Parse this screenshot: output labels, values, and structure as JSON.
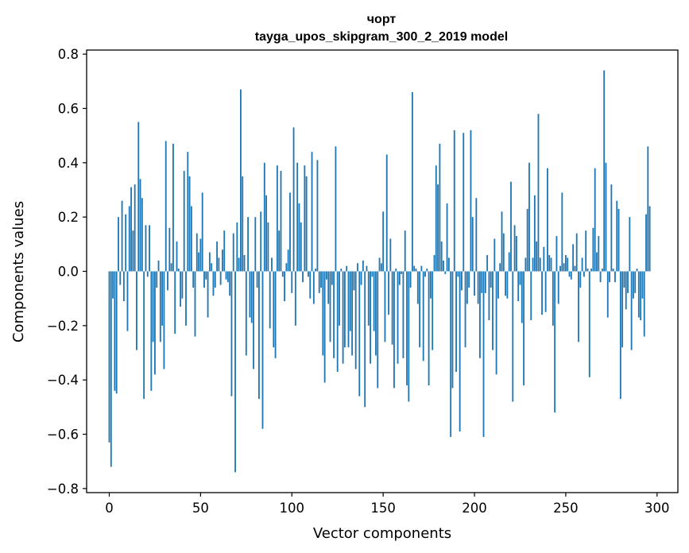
{
  "chart_data": {
    "type": "bar",
    "title": "чорт",
    "subtitle": "tayga_upos_skipgram_300_2_2019 model",
    "xlabel": "Vector components",
    "ylabel": "Components values",
    "xlim": [
      -12.4,
      311.4
    ],
    "ylim": [
      -0.815,
      0.815
    ],
    "xticks": [
      0,
      50,
      100,
      150,
      200,
      250,
      300
    ],
    "xtick_labels": [
      "0",
      "50",
      "100",
      "150",
      "200",
      "250",
      "300"
    ],
    "yticks": [
      -0.8,
      -0.6,
      -0.4,
      -0.2,
      0.0,
      0.2,
      0.4,
      0.6,
      0.8
    ],
    "ytick_labels": [
      "−0.8",
      "−0.6",
      "−0.4",
      "−0.2",
      "0.0",
      "0.2",
      "0.4",
      "0.6",
      "0.8"
    ],
    "color": "#1f77b4",
    "values": [
      -0.63,
      -0.72,
      -0.1,
      -0.44,
      -0.45,
      0.2,
      -0.05,
      0.26,
      -0.11,
      0.21,
      -0.22,
      0.24,
      0.31,
      0.15,
      0.32,
      -0.29,
      0.55,
      0.34,
      0.27,
      -0.47,
      0.17,
      -0.02,
      0.17,
      -0.44,
      -0.26,
      -0.38,
      -0.06,
      0.04,
      -0.26,
      -0.2,
      -0.36,
      0.48,
      -0.07,
      0.16,
      0.03,
      0.47,
      -0.23,
      0.11,
      0.01,
      -0.13,
      -0.1,
      0.37,
      -0.2,
      0.44,
      0.35,
      0.24,
      -0.06,
      -0.24,
      0.14,
      0.07,
      0.12,
      0.29,
      -0.06,
      -0.03,
      -0.17,
      0.07,
      0.03,
      -0.09,
      -0.06,
      0.11,
      0.05,
      -0.05,
      0.08,
      0.15,
      -0.03,
      -0.04,
      -0.09,
      -0.46,
      0.14,
      -0.74,
      0.18,
      0.05,
      0.67,
      0.35,
      0.06,
      -0.31,
      0.2,
      -0.17,
      -0.19,
      -0.36,
      0.2,
      -0.06,
      -0.47,
      0.22,
      -0.58,
      0.4,
      0.28,
      0.18,
      -0.21,
      0.05,
      -0.28,
      -0.32,
      0.39,
      0.15,
      0.37,
      -0.02,
      -0.11,
      0.03,
      0.08,
      0.29,
      -0.08,
      0.53,
      -0.2,
      0.4,
      0.25,
      0.18,
      -0.04,
      0.39,
      0.35,
      -0.02,
      -0.1,
      0.44,
      -0.12,
      0.01,
      0.41,
      -0.08,
      -0.06,
      -0.31,
      -0.41,
      -0.03,
      -0.12,
      -0.26,
      -0.05,
      -0.32,
      0.46,
      -0.37,
      -0.2,
      0.01,
      -0.34,
      -0.28,
      0.02,
      -0.28,
      -0.22,
      -0.31,
      -0.07,
      -0.36,
      0.03,
      -0.46,
      -0.05,
      0.04,
      -0.5,
      0.02,
      -0.2,
      -0.34,
      -0.02,
      -0.22,
      -0.31,
      -0.43,
      0.05,
      0.03,
      0.22,
      -0.26,
      0.43,
      -0.16,
      0.12,
      -0.27,
      -0.43,
      0.01,
      -0.34,
      -0.05,
      -0.01,
      -0.32,
      0.15,
      -0.42,
      -0.48,
      -0.06,
      0.66,
      0.02,
      0.01,
      -0.12,
      -0.28,
      0.02,
      -0.33,
      -0.02,
      0.01,
      -0.42,
      -0.1,
      -0.29,
      0.06,
      0.39,
      0.32,
      0.47,
      0.11,
      0.04,
      -0.01,
      0.25,
      0.05,
      -0.61,
      -0.43,
      0.52,
      -0.37,
      -0.02,
      -0.59,
      -0.07,
      0.51,
      -0.28,
      -0.12,
      -0.06,
      0.52,
      0.2,
      -0.09,
      0.27,
      -0.12,
      -0.32,
      -0.08,
      -0.61,
      -0.08,
      0.06,
      -0.18,
      -0.06,
      -0.29,
      0.12,
      -0.38,
      -0.1,
      0.03,
      0.22,
      0.14,
      -0.09,
      -0.1,
      0.07,
      0.33,
      -0.48,
      0.17,
      0.13,
      -0.11,
      -0.05,
      -0.19,
      -0.42,
      0.05,
      0.23,
      0.4,
      -0.18,
      0.05,
      0.28,
      0.11,
      0.58,
      0.05,
      -0.16,
      0.09,
      -0.15,
      0.38,
      0.06,
      0.05,
      -0.2,
      -0.52,
      0.13,
      -0.12,
      0.02,
      0.29,
      0.03,
      0.06,
      0.05,
      -0.02,
      -0.03,
      0.1,
      0.02,
      0.14,
      -0.26,
      -0.06,
      0.05,
      -0.02,
      0.15,
      0.01,
      -0.39,
      0.01,
      0.16,
      0.38,
      0.07,
      0.13,
      -0.04,
      0.01,
      0.74,
      0.4,
      -0.17,
      -0.04,
      0.32,
      0.01,
      -0.04,
      0.26,
      0.23,
      -0.47,
      -0.28,
      -0.06,
      -0.14,
      -0.08,
      0.2,
      -0.29,
      -0.1,
      -0.08,
      0.01,
      -0.17,
      -0.18,
      -0.1,
      -0.24,
      0.21,
      0.46,
      0.24
    ]
  }
}
